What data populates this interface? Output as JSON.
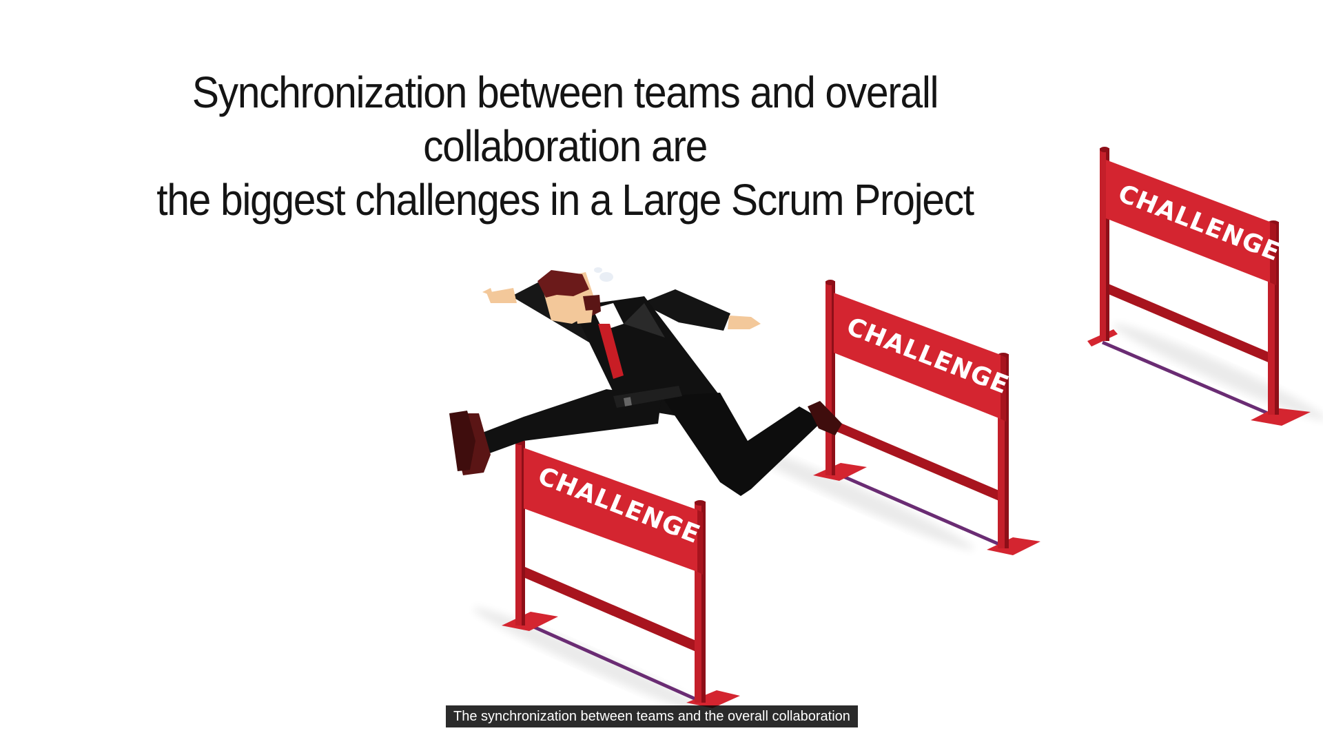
{
  "headline": {
    "line1": "Synchronization between teams and overall collaboration are",
    "line2": "the biggest challenges in a Large Scrum Project"
  },
  "illustration": {
    "figure": "businessman-hurdling",
    "hurdle_label": "CHALLENGE",
    "hurdle_color": "#d42530",
    "hurdle_dark": "#a8141e",
    "suit_color": "#111111"
  },
  "caption": {
    "text": "The synchronization between teams and the overall collaboration"
  }
}
